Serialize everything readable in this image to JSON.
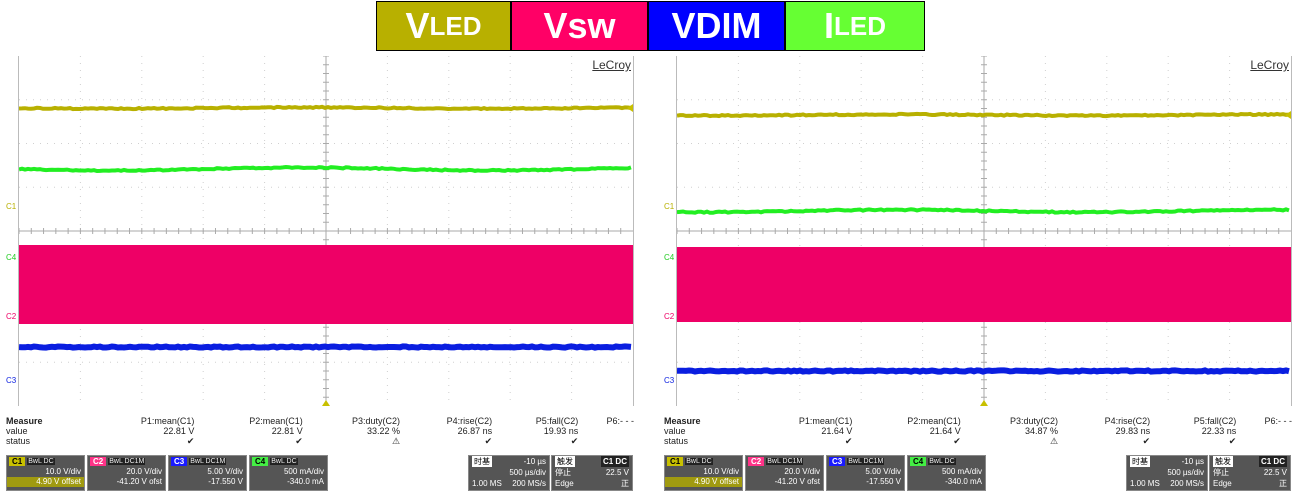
{
  "legend": [
    {
      "main": "V",
      "sub": "LED",
      "color": "#b8b000"
    },
    {
      "main": "Vsw",
      "sub": "",
      "color": "#ff0066"
    },
    {
      "main": "VDIM",
      "sub": "",
      "color": "#0000ff"
    },
    {
      "main": "I",
      "sub": "LED",
      "color": "#66ff33"
    }
  ],
  "colors": {
    "c1": "#b8b000",
    "c2": "#ee0066",
    "c3": "#0a1ee0",
    "c4": "#22ee22"
  },
  "scopes": [
    {
      "brand": "LeCroy",
      "channel_labels": [
        "C1",
        "C4",
        "C2",
        "C3"
      ],
      "measure_headers": [
        "Measure",
        "P1:mean(C1)",
        "P2:mean(C1)",
        "P3:duty(C2)",
        "P4:rise(C2)",
        "P5:fall(C2)",
        "P6:- - -"
      ],
      "value_row": [
        "value",
        "22.81 V",
        "22.81 V",
        "33.22 %",
        "26.87 ns",
        "19.93 ns",
        ""
      ],
      "status_row": [
        "status",
        "✔",
        "✔",
        "⚠",
        "✔",
        "✔",
        ""
      ],
      "channels": [
        {
          "tag": "C1",
          "flags": "BwL DC",
          "vdiv": "10.0 V/div",
          "offset": "4.90 V offset"
        },
        {
          "tag": "C2",
          "flags": "BwL DC1M",
          "vdiv": "20.0 V/div",
          "offset": "-41.20 V ofst"
        },
        {
          "tag": "C3",
          "flags": "BwL DC1M",
          "vdiv": "5.00 V/div",
          "offset": "-17.550 V"
        },
        {
          "tag": "C4",
          "flags": "BwL DC",
          "vdiv": "500 mA/div",
          "offset": "-340.0 mA"
        }
      ],
      "timebase": {
        "label": "时基",
        "delay": "-10 µs",
        "tdiv": "500 µs/div",
        "samples": "1.00 MS",
        "rate": "200 MS/s"
      },
      "trigger": {
        "label": "触发",
        "src": "C1 DC",
        "mode": "停止",
        "level": "22.5 V",
        "type": "Edge",
        "slope": "正"
      }
    },
    {
      "brand": "LeCroy",
      "channel_labels": [
        "C1",
        "C4",
        "C2",
        "C3"
      ],
      "measure_headers": [
        "Measure",
        "P1:mean(C1)",
        "P2:mean(C1)",
        "P3:duty(C2)",
        "P4:rise(C2)",
        "P5:fall(C2)",
        "P6:- - -"
      ],
      "value_row": [
        "value",
        "21.64 V",
        "21.64 V",
        "34.87 %",
        "29.83 ns",
        "22.33 ns",
        ""
      ],
      "status_row": [
        "status",
        "✔",
        "✔",
        "⚠",
        "✔",
        "✔",
        ""
      ],
      "channels": [
        {
          "tag": "C1",
          "flags": "BwL DC",
          "vdiv": "10.0 V/div",
          "offset": "4.90 V offset"
        },
        {
          "tag": "C2",
          "flags": "BwL DC1M",
          "vdiv": "20.0 V/div",
          "offset": "-41.20 V ofst"
        },
        {
          "tag": "C3",
          "flags": "BwL DC1M",
          "vdiv": "5.00 V/div",
          "offset": "-17.550 V"
        },
        {
          "tag": "C4",
          "flags": "BwL DC",
          "vdiv": "500 mA/div",
          "offset": "-340.0 mA"
        }
      ],
      "timebase": {
        "label": "时基",
        "delay": "-10 µs",
        "tdiv": "500 µs/div",
        "samples": "1.00 MS",
        "rate": "200 MS/s"
      },
      "trigger": {
        "label": "触发",
        "src": "C1 DC",
        "mode": "停止",
        "level": "22.5 V",
        "type": "Edge",
        "slope": "正"
      }
    }
  ]
}
